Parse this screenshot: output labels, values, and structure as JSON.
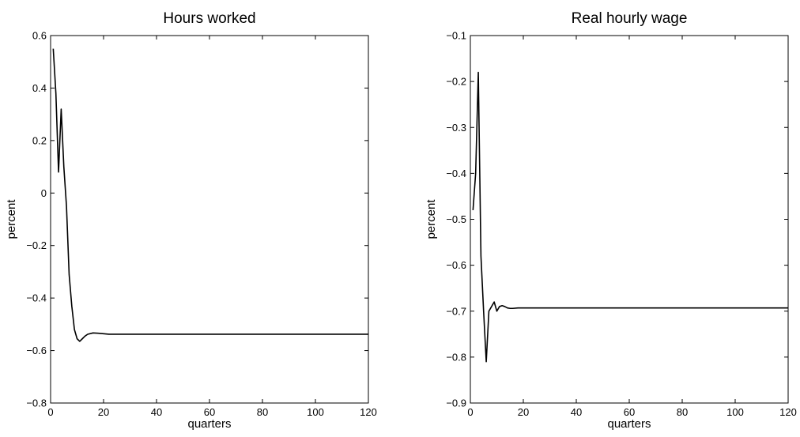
{
  "chart_data": [
    {
      "type": "line",
      "title": "Hours worked",
      "xlabel": "quarters",
      "ylabel": "percent",
      "xlim": [
        0,
        120
      ],
      "ylim": [
        -0.8,
        0.6
      ],
      "xticks": [
        0,
        20,
        40,
        60,
        80,
        100,
        120
      ],
      "xtick_labels": [
        "0",
        "20",
        "40",
        "60",
        "80",
        "100",
        "120"
      ],
      "yticks": [
        -0.8,
        -0.6,
        -0.4,
        -0.2,
        0,
        0.2,
        0.4,
        0.6
      ],
      "ytick_labels": [
        "−0.8",
        "−0.6",
        "−0.4",
        "−0.2",
        "0",
        "0.2",
        "0.4",
        "0.6"
      ],
      "grid": false,
      "legend": "none",
      "line_color": "#000000",
      "series": [
        {
          "x": [
            1,
            2,
            3,
            4,
            5,
            6,
            7,
            8,
            9,
            10,
            11,
            12,
            13,
            14,
            16,
            18,
            20,
            22,
            25,
            30,
            40,
            60,
            80,
            100,
            120
          ],
          "y": [
            0.55,
            0.38,
            0.08,
            0.32,
            0.1,
            -0.05,
            -0.31,
            -0.43,
            -0.52,
            -0.555,
            -0.565,
            -0.555,
            -0.545,
            -0.538,
            -0.533,
            -0.534,
            -0.536,
            -0.538,
            -0.538,
            -0.538,
            -0.538,
            -0.538,
            -0.538,
            -0.538,
            -0.538
          ]
        }
      ]
    },
    {
      "type": "line",
      "title": "Real hourly wage",
      "xlabel": "quarters",
      "ylabel": "percent",
      "xlim": [
        0,
        120
      ],
      "ylim": [
        -0.9,
        -0.1
      ],
      "xticks": [
        0,
        20,
        40,
        60,
        80,
        100,
        120
      ],
      "xtick_labels": [
        "0",
        "20",
        "40",
        "60",
        "80",
        "100",
        "120"
      ],
      "yticks": [
        -0.9,
        -0.8,
        -0.7,
        -0.6,
        -0.5,
        -0.4,
        -0.3,
        -0.2,
        -0.1
      ],
      "ytick_labels": [
        "−0.9",
        "−0.8",
        "−0.7",
        "−0.6",
        "−0.5",
        "−0.4",
        "−0.3",
        "−0.2",
        "−0.1"
      ],
      "grid": false,
      "legend": "none",
      "line_color": "#000000",
      "series": [
        {
          "x": [
            1,
            2,
            3,
            4,
            5,
            6,
            7,
            8,
            9,
            10,
            11,
            12,
            13,
            14,
            15,
            16,
            18,
            20,
            25,
            30,
            40,
            60,
            80,
            100,
            120
          ],
          "y": [
            -0.48,
            -0.4,
            -0.18,
            -0.58,
            -0.7,
            -0.81,
            -0.7,
            -0.69,
            -0.68,
            -0.7,
            -0.69,
            -0.688,
            -0.69,
            -0.693,
            -0.694,
            -0.694,
            -0.693,
            -0.693,
            -0.693,
            -0.693,
            -0.693,
            -0.693,
            -0.693,
            -0.693,
            -0.693
          ]
        }
      ]
    }
  ]
}
